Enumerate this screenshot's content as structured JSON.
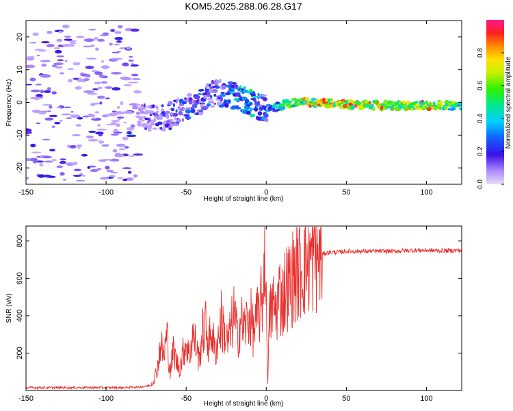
{
  "title": "KOM5.2025.288.06.28.G17",
  "chart_data": [
    {
      "type": "heatmap",
      "title": "KOM5.2025.288.06.28.G17",
      "xlabel": "Height of straight line (km)",
      "ylabel": "Frequency (Hz)",
      "xlim": [
        -150,
        122
      ],
      "ylim": [
        -25,
        25
      ],
      "xticks": [
        "-150",
        "-100",
        "-50",
        "0",
        "50",
        "100"
      ],
      "yticks": [
        "20",
        "10",
        "0",
        "-10",
        "-20"
      ],
      "colorbar": {
        "label": "Normalized spectral amplitude",
        "range": [
          0,
          1
        ],
        "ticks": [
          "0.0",
          "0.2",
          "0.4",
          "0.6",
          "0.8"
        ]
      },
      "signal_track": [
        {
          "x": -80,
          "f": -4,
          "amp": 0.12
        },
        {
          "x": -70,
          "f": -5,
          "amp": 0.2
        },
        {
          "x": -60,
          "f": -4,
          "amp": 0.25
        },
        {
          "x": -50,
          "f": -2,
          "amp": 0.3
        },
        {
          "x": -40,
          "f": 1,
          "amp": 0.3
        },
        {
          "x": -30,
          "f": 3,
          "amp": 0.25
        },
        {
          "x": -20,
          "f": 2,
          "amp": 0.45
        },
        {
          "x": -10,
          "f": 0,
          "amp": 0.5
        },
        {
          "x": 0,
          "f": -2,
          "amp": 0.3
        },
        {
          "x": 10,
          "f": -1,
          "amp": 0.6
        },
        {
          "x": 20,
          "f": 0,
          "amp": 0.75
        },
        {
          "x": 30,
          "f": 0,
          "amp": 0.9
        },
        {
          "x": 50,
          "f": -0.5,
          "amp": 0.85
        },
        {
          "x": 70,
          "f": -1,
          "amp": 0.85
        },
        {
          "x": 90,
          "f": -1,
          "amp": 0.8
        },
        {
          "x": 105,
          "f": -1,
          "amp": 0.9
        },
        {
          "x": 122,
          "f": -1,
          "amp": 0.6
        }
      ]
    },
    {
      "type": "line",
      "xlabel": "Height of straight line (km)",
      "ylabel": "SNR (v/v)",
      "xlim": [
        -150,
        122
      ],
      "ylim": [
        0,
        880
      ],
      "xticks": [
        "-150",
        "-100",
        "-50",
        "0",
        "50",
        "100"
      ],
      "yticks": [
        "800",
        "600",
        "400",
        "200"
      ],
      "series": [
        {
          "name": "SNR",
          "color": "#e8302d",
          "x": [
            -150,
            -140,
            -130,
            -120,
            -110,
            -100,
            -90,
            -80,
            -75,
            -72,
            -70,
            -68,
            -66,
            -64,
            -62,
            -60,
            -58,
            -56,
            -54,
            -52,
            -50,
            -48,
            -46,
            -44,
            -42,
            -40,
            -38,
            -36,
            -34,
            -32,
            -30,
            -28,
            -26,
            -24,
            -22,
            -20,
            -18,
            -16,
            -14,
            -12,
            -10,
            -8,
            -6,
            -4,
            -2,
            -1,
            0,
            1,
            2,
            4,
            6,
            8,
            10,
            12,
            14,
            16,
            18,
            20,
            22,
            24,
            26,
            28,
            30,
            32,
            35,
            40,
            45,
            50,
            60,
            70,
            80,
            90,
            100,
            110,
            122
          ],
          "y": [
            15,
            15,
            15,
            15,
            15,
            15,
            15,
            18,
            22,
            30,
            60,
            120,
            250,
            180,
            300,
            90,
            220,
            150,
            120,
            200,
            260,
            180,
            300,
            250,
            160,
            300,
            350,
            250,
            320,
            200,
            280,
            380,
            300,
            250,
            330,
            420,
            280,
            380,
            330,
            370,
            400,
            310,
            380,
            430,
            520,
            860,
            420,
            60,
            380,
            460,
            420,
            520,
            480,
            560,
            560,
            600,
            620,
            640,
            660,
            680,
            700,
            700,
            720,
            725,
            730,
            740,
            740,
            745,
            745,
            745,
            745,
            750,
            750,
            748,
            750
          ]
        }
      ]
    }
  ]
}
